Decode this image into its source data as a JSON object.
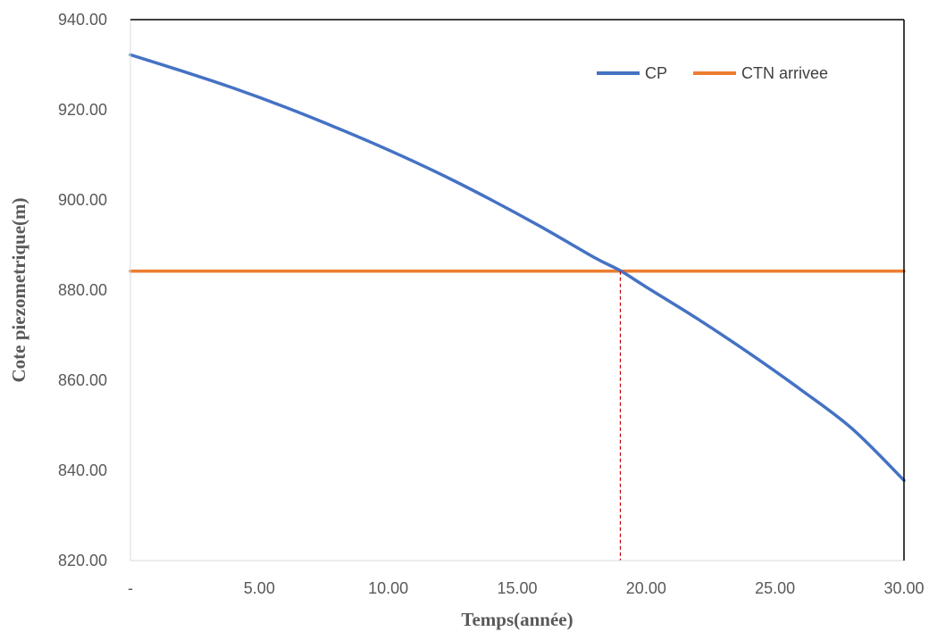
{
  "chart_data": {
    "type": "line",
    "title": "",
    "xlabel": "Temps(année)",
    "ylabel": "Cote piezometrique(m)",
    "xlim": [
      0,
      30
    ],
    "ylim": [
      820,
      940
    ],
    "x_ticks": [
      "-",
      "5.00",
      "10.00",
      "15.00",
      "20.00",
      "25.00",
      "30.00"
    ],
    "y_ticks": [
      "820.00",
      "840.00",
      "860.00",
      "880.00",
      "900.00",
      "920.00",
      "940.00"
    ],
    "grid": false,
    "legend_position": "top-right",
    "x": [
      0,
      2,
      4,
      6,
      8,
      10,
      12,
      14,
      16,
      18,
      19,
      20,
      22,
      24,
      26,
      28,
      30
    ],
    "series": [
      {
        "name": "CP",
        "color": "#4472C4",
        "values": [
          932.2,
          928.6,
          924.8,
          920.6,
          916.0,
          911.1,
          905.8,
          900.0,
          893.8,
          887.2,
          884.3,
          880.7,
          873.6,
          866.0,
          857.9,
          849.2,
          837.8
        ]
      },
      {
        "name": "CTN arrivee",
        "color": "#ED7D31",
        "values": [
          884.2,
          884.2,
          884.2,
          884.2,
          884.2,
          884.2,
          884.2,
          884.2,
          884.2,
          884.2,
          884.2,
          884.2,
          884.2,
          884.2,
          884.2,
          884.2,
          884.2
        ]
      }
    ],
    "annotations": [
      {
        "type": "vertical-dashed-line",
        "x": 19,
        "y_from": 820,
        "y_to": 884.2,
        "color": "#C00000"
      }
    ]
  }
}
